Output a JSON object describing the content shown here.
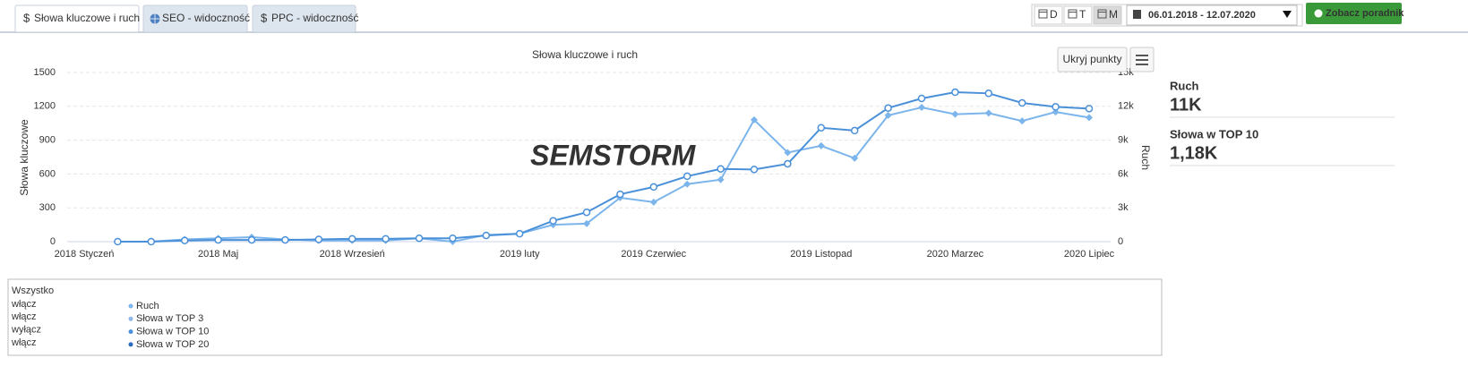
{
  "tabs": [
    {
      "icon": "$",
      "label": "Słowa kluczowe i ruch",
      "active": true
    },
    {
      "label": "SEO - widoczność",
      "active": false
    },
    {
      "icon": "$",
      "label": "PPC - widoczność",
      "active": false
    }
  ],
  "period_buttons": [
    "D",
    "T",
    "M"
  ],
  "active_period": 2,
  "date_range": "06.01.2018 - 12.07.2020",
  "guide_button": "Zobacz poradnik",
  "hide_points_button": "Ukryj punkty",
  "watermark": "SEMSTORM",
  "chart_data": {
    "type": "line",
    "title": "Słowa kluczowe i ruch",
    "y_label": "Słowa kluczowe",
    "y2_label": "Ruch",
    "categories": [
      "2018 Styczeń",
      null,
      null,
      null,
      "2018 Maj",
      null,
      null,
      null,
      "2018 Wrzesień",
      null,
      null,
      null,
      null,
      "2019 luty",
      null,
      null,
      null,
      "2019 Czerwiec",
      null,
      null,
      null,
      null,
      "2019 Listopad",
      null,
      null,
      null,
      "2020 Marzec",
      null,
      null,
      null,
      "2020 Lipiec"
    ],
    "ylim": [
      0,
      1500
    ],
    "yticks": [
      0,
      300,
      600,
      900,
      1200,
      1500
    ],
    "y2lim": [
      0,
      15000
    ],
    "y2ticks": [
      0,
      {
        "value": 3000,
        "label": "3k"
      },
      {
        "value": 6000,
        "label": "6k"
      },
      {
        "value": 9000,
        "label": "9k"
      },
      {
        "value": 12000,
        "label": "12k"
      },
      {
        "value": 15000,
        "label": "15k"
      }
    ],
    "grid": true,
    "series": [
      {
        "name": "Ruch",
        "color": "#7cb5ec",
        "axis": "y2",
        "marker": "diamond",
        "values": [
          null,
          0,
          0,
          200,
          300,
          400,
          200,
          100,
          100,
          100,
          300,
          0,
          600,
          700,
          1500,
          1600,
          3900,
          3500,
          5100,
          5500,
          10800,
          7900,
          8500,
          7400,
          11200,
          11900,
          11300,
          11400,
          10700,
          11500,
          11000
        ]
      },
      {
        "name": "Słowa w TOP 10",
        "color": "#4a90d9",
        "axis": "y",
        "marker": "circle",
        "values": [
          null,
          0,
          0,
          10,
          15,
          15,
          15,
          20,
          25,
          25,
          30,
          30,
          55,
          70,
          185,
          260,
          420,
          485,
          580,
          645,
          640,
          690,
          1010,
          985,
          1185,
          1270,
          1325,
          1315,
          1230,
          1195,
          1180
        ]
      }
    ]
  },
  "summary": [
    {
      "label": "Ruch",
      "value": "11K"
    },
    {
      "label": "Słowa w TOP 10",
      "value": "1,18K"
    }
  ],
  "legend_panel": {
    "all_label": "Wszystko",
    "toggles": [
      {
        "label": "włącz",
        "active": false
      },
      {
        "label": "włącz",
        "active": false
      },
      {
        "label": "wyłącz",
        "active": true
      },
      {
        "label": "włącz",
        "active": false
      }
    ],
    "items": [
      {
        "name": "Ruch",
        "color": "#7cb5ec",
        "active": true
      },
      {
        "name": "Słowa w TOP 3",
        "color": "#90b8e8",
        "active": false
      },
      {
        "name": "Słowa w TOP 10",
        "color": "#4a90d9",
        "active": true
      },
      {
        "name": "Słowa w TOP 20",
        "color": "#2a6bbf",
        "active": false
      }
    ]
  }
}
